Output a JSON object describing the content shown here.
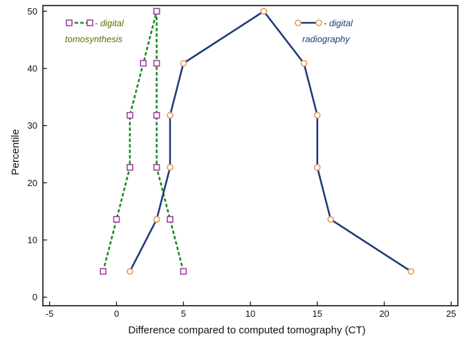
{
  "chart_data": {
    "type": "line",
    "xlabel": "Difference compared to computed tomography (CT)",
    "ylabel": "Percentile",
    "xlim": [
      -5.5,
      25.5
    ],
    "ylim": [
      -1.5,
      51
    ],
    "x_ticks": [
      -5,
      0,
      5,
      10,
      15,
      20,
      25
    ],
    "y_ticks": [
      0,
      10,
      20,
      30,
      40,
      50
    ],
    "grid": false,
    "series": [
      {
        "name": "- digital tomosynthesis",
        "legend_lines": [
          "- digital",
          "tomosynthesis"
        ],
        "color": "#1e8c1e",
        "marker": "square",
        "marker_color": "#a040a0",
        "line_style": "dashed",
        "legend_color": "#6b6b00",
        "curves": [
          [
            [
              -1,
              4.5
            ],
            [
              0,
              13.6
            ],
            [
              1,
              22.7
            ],
            [
              1,
              31.8
            ],
            [
              2,
              40.9
            ],
            [
              3,
              50
            ]
          ],
          [
            [
              5,
              4.5
            ],
            [
              4,
              13.6
            ],
            [
              3,
              22.7
            ],
            [
              3,
              31.8
            ],
            [
              3,
              40.9
            ],
            [
              3,
              50
            ]
          ]
        ]
      },
      {
        "name": "- digital radiography",
        "legend_lines": [
          "- digital",
          "radiography"
        ],
        "color": "#1f3a7a",
        "marker": "circle",
        "marker_color": "#e89a50",
        "line_style": "solid",
        "legend_color": "#1f3a7a",
        "curves": [
          [
            [
              1,
              4.5
            ],
            [
              3,
              13.6
            ],
            [
              4,
              22.7
            ],
            [
              4,
              31.8
            ],
            [
              5,
              40.9
            ],
            [
              11,
              50
            ]
          ],
          [
            [
              22,
              4.5
            ],
            [
              16,
              13.6
            ],
            [
              15,
              22.7
            ],
            [
              15,
              31.8
            ],
            [
              14,
              40.9
            ],
            [
              11,
              50
            ]
          ]
        ]
      }
    ]
  }
}
